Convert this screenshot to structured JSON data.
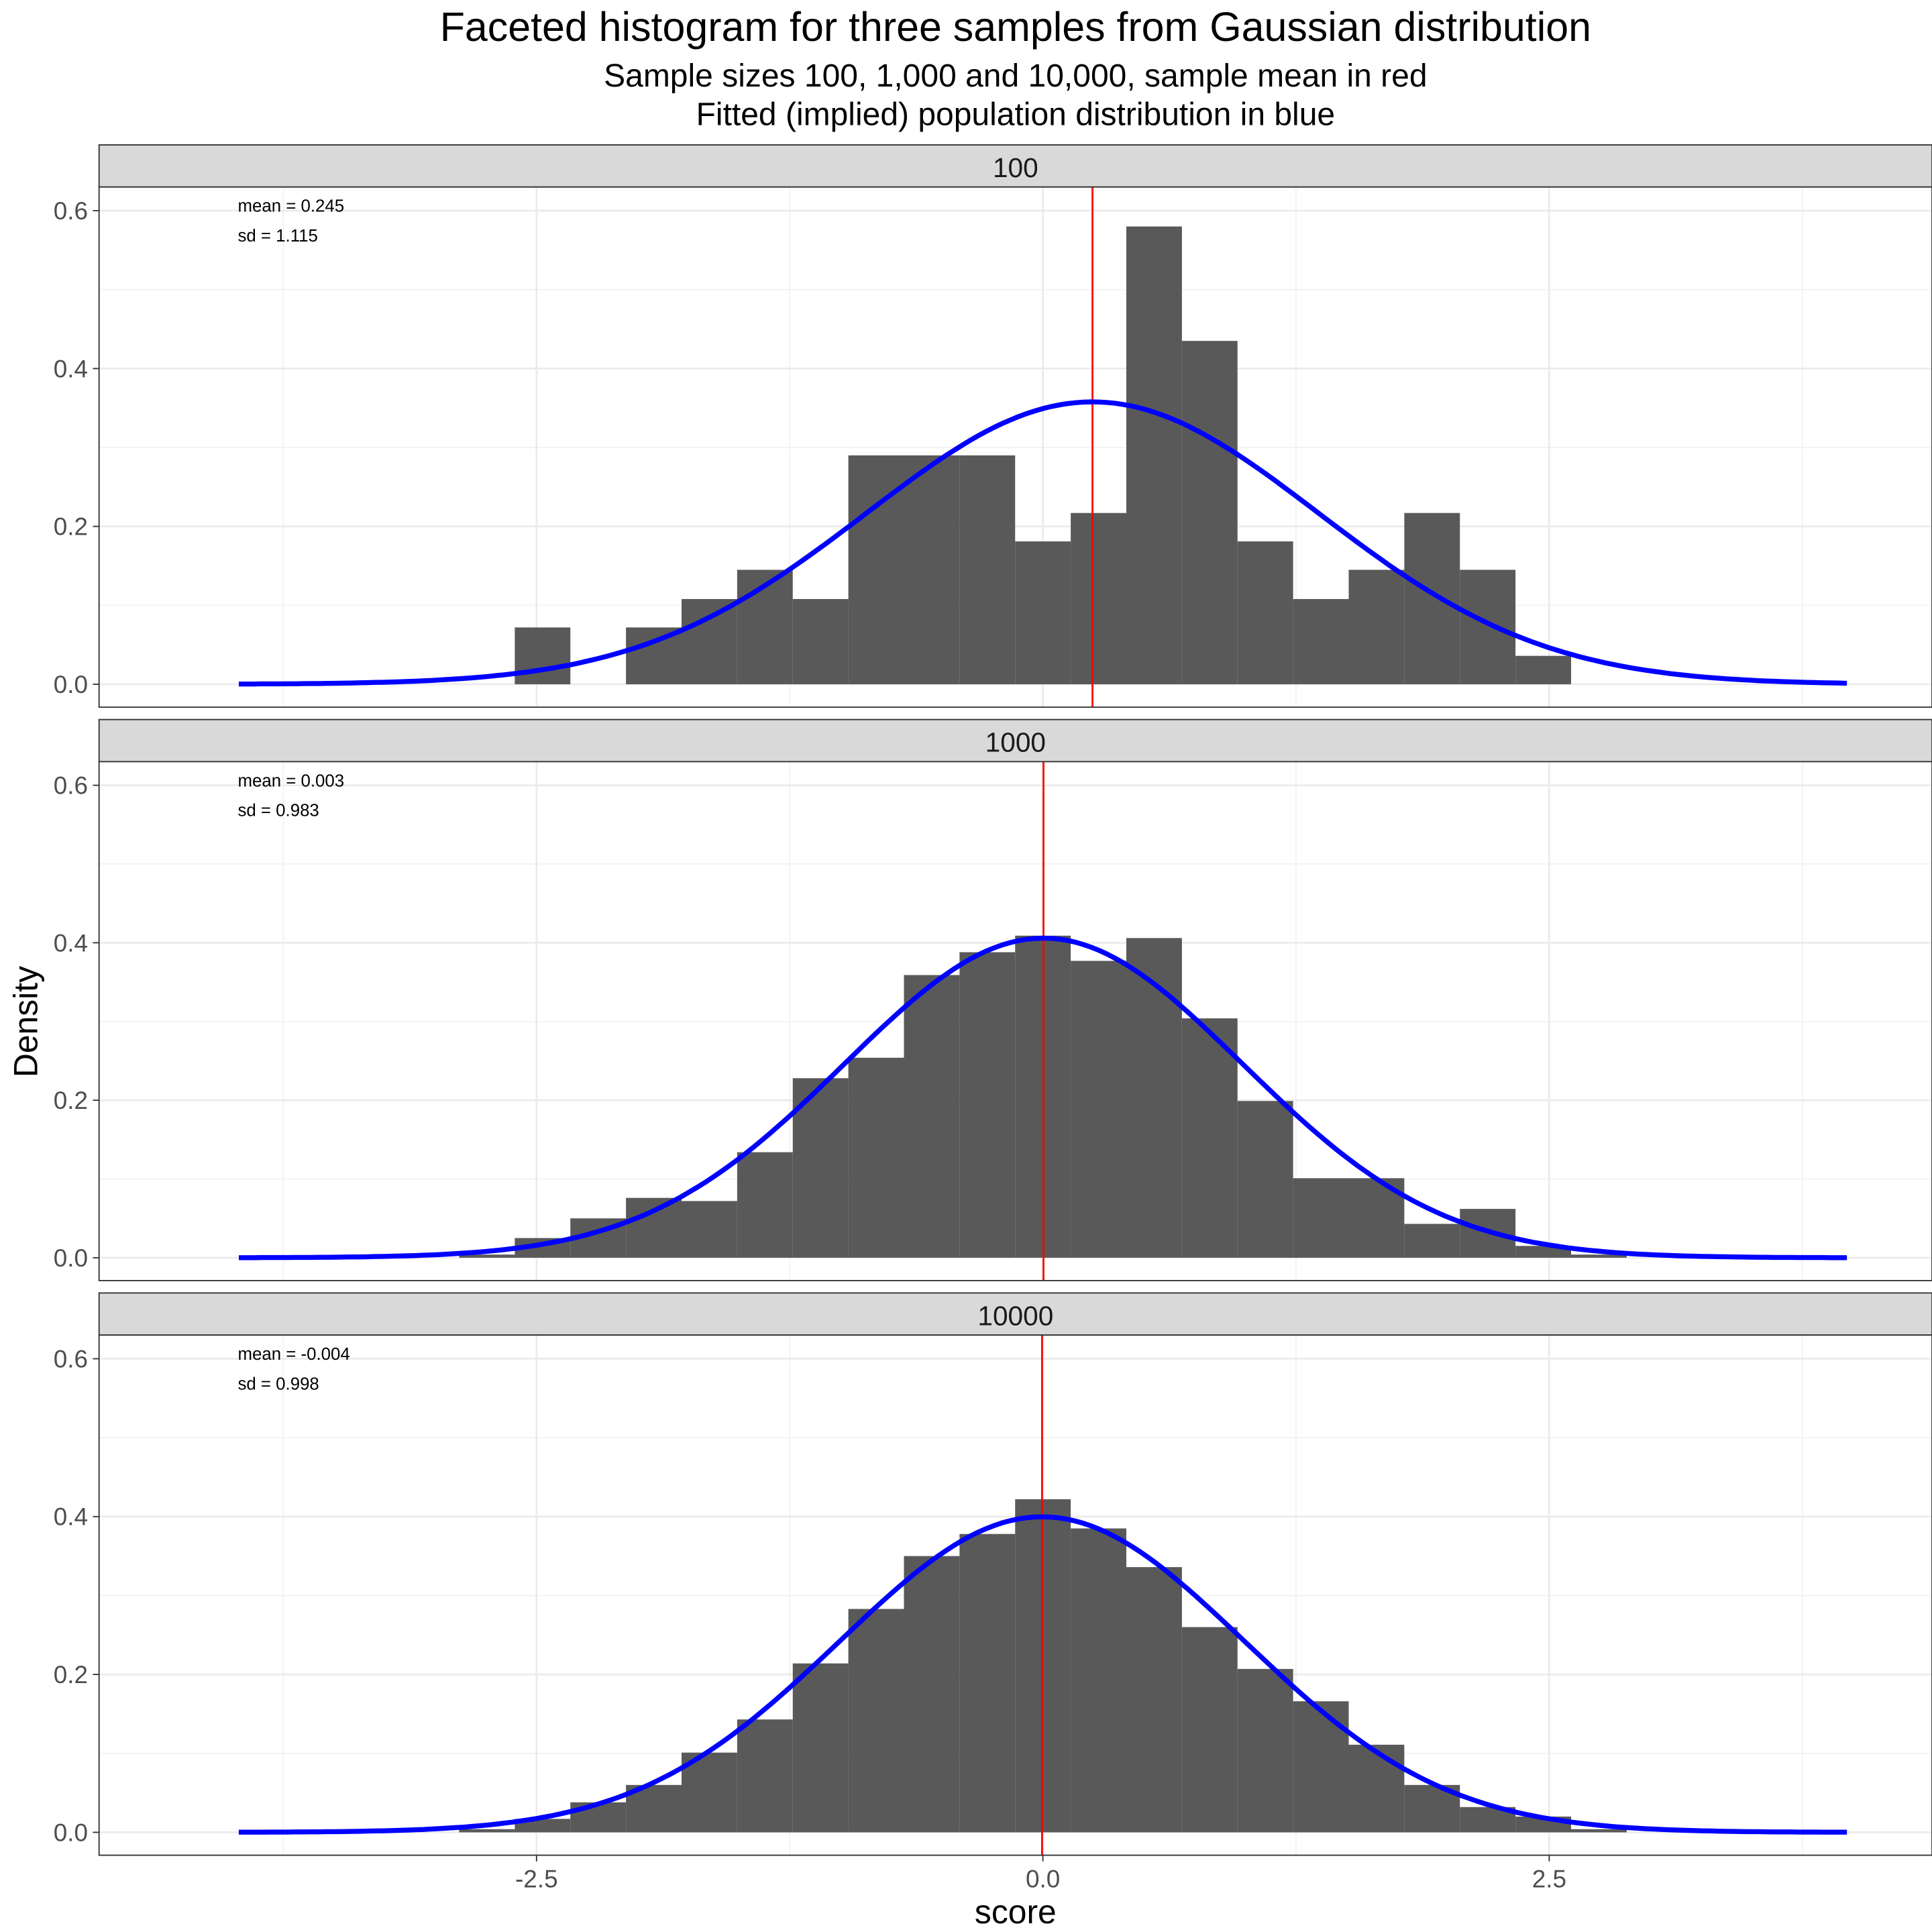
{
  "chart_data": {
    "type": "bar",
    "title": "Faceted histogram for three samples from Gaussian distribution",
    "subtitle": [
      "Sample sizes 100, 1,000 and 10,000, sample mean in red",
      "Fitted (implied) population distribution in blue"
    ],
    "xlabel": "score",
    "ylabel": "Density",
    "xlim": [
      -4.66,
      4.39
    ],
    "ylim": [
      -0.029,
      0.63
    ],
    "x_ticks": [
      -2.5,
      0.0,
      2.5
    ],
    "x_tick_labels": [
      "-2.5",
      "0.0",
      "2.5"
    ],
    "y_ticks": [
      0.0,
      0.2,
      0.4,
      0.6
    ],
    "y_tick_labels": [
      "0.0",
      "0.2",
      "0.4",
      "0.6"
    ],
    "grid": true,
    "bin_first_left_edge": -2.882,
    "bin_width": 0.2745,
    "curve_range": [
      -3.97,
      3.97
    ],
    "colors": {
      "bars": "#595959",
      "mean_line": "#ff0000",
      "fitted_curve": "#0000ff",
      "strip": "#d9d9d9"
    },
    "panels": [
      {
        "strip_label": "100",
        "mean": 0.245,
        "sd": 1.115,
        "annotation_mean": "mean = 0.245",
        "annotation_sd": "sd = 1.115",
        "densities": [
          0,
          0.072,
          0,
          0.072,
          0.108,
          0.145,
          0.108,
          0.29,
          0.29,
          0.29,
          0.181,
          0.217,
          0.58,
          0.435,
          0.181,
          0.108,
          0.145,
          0.217,
          0.145,
          0.036,
          0
        ]
      },
      {
        "strip_label": "1000",
        "mean": 0.003,
        "sd": 0.983,
        "annotation_mean": "mean = 0.003",
        "annotation_sd": "sd = 0.983",
        "densities": [
          0.004,
          0.025,
          0.05,
          0.076,
          0.072,
          0.134,
          0.228,
          0.254,
          0.359,
          0.388,
          0.409,
          0.377,
          0.406,
          0.304,
          0.199,
          0.101,
          0.101,
          0.043,
          0.062,
          0.015,
          0.004
        ]
      },
      {
        "strip_label": "10000",
        "mean": -0.004,
        "sd": 0.998,
        "annotation_mean": "mean = -0.004",
        "annotation_sd": "sd = 0.998",
        "densities": [
          0.004,
          0.017,
          0.038,
          0.06,
          0.101,
          0.143,
          0.214,
          0.283,
          0.35,
          0.378,
          0.422,
          0.385,
          0.336,
          0.26,
          0.207,
          0.166,
          0.111,
          0.06,
          0.032,
          0.02,
          0.004
        ]
      }
    ]
  }
}
